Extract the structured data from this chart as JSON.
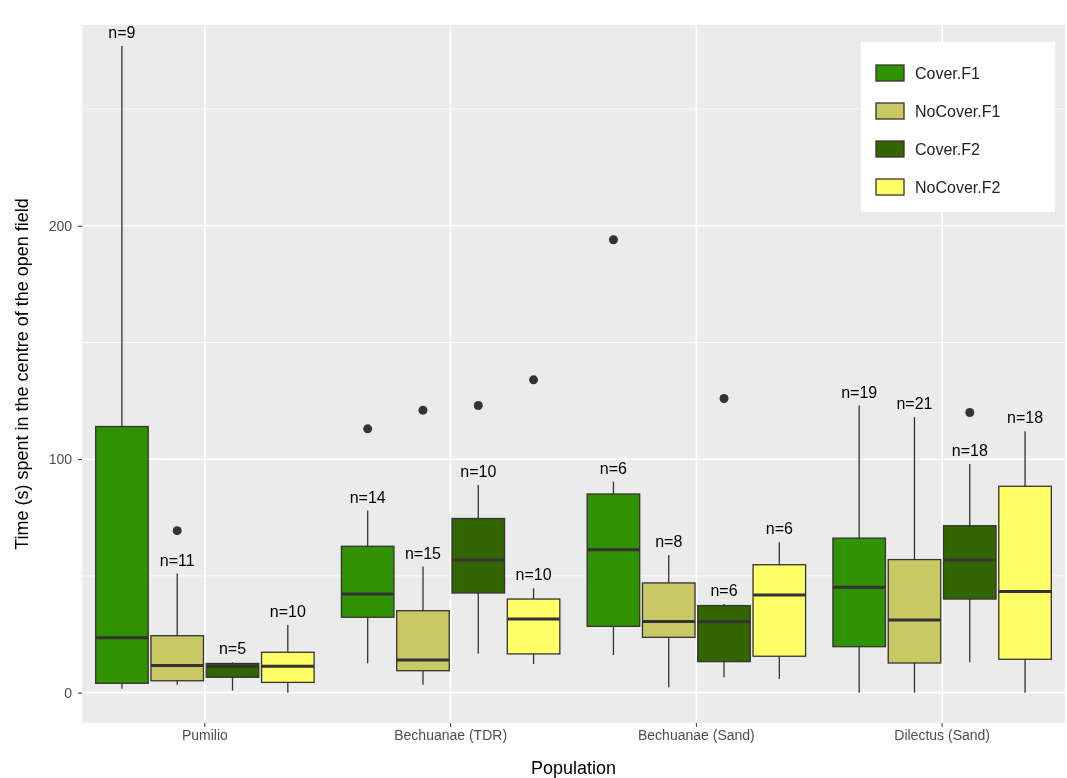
{
  "chart_data": {
    "type": "box",
    "xlabel": "Population",
    "ylabel": "Time (s) spent in the centre of the open field",
    "categories": [
      "Pumilio",
      "Bechuanae (TDR)",
      "Bechuanae (Sand)",
      "Dilectus (Sand)"
    ],
    "ylim": [
      -13,
      286
    ],
    "yticks": [
      {
        "value": 0,
        "label": "0"
      },
      {
        "value": 50,
        "label": null
      },
      {
        "value": 100,
        "label": "100"
      },
      {
        "value": 150,
        "label": null
      },
      {
        "value": 200,
        "label": "200"
      },
      {
        "value": 250,
        "label": null
      }
    ],
    "grid": true,
    "legend": "top right",
    "series": [
      {
        "name": "Cover.F1",
        "color": "#319200",
        "value_labels": [
          "n=9",
          "n=14",
          "n=6",
          "n=19"
        ],
        "boxes": [
          {
            "low": 1.7,
            "q1": 4,
            "median": 23.5,
            "q3": 114,
            "high": 277
          },
          {
            "low": 12.6,
            "q1": 32.3,
            "median": 42.3,
            "q3": 62.7,
            "high": 78,
            "outliers": [
              113
            ]
          },
          {
            "low": 16.1,
            "q1": 28.4,
            "median": 61.2,
            "q3": 85.1,
            "high": 90.4,
            "outliers": [
              194
            ]
          },
          {
            "low": 0,
            "q1": 19.7,
            "median": 45.1,
            "q3": 66.2,
            "high": 123
          }
        ]
      },
      {
        "name": "NoCover.F1",
        "color": "#c8c864",
        "value_labels": [
          "n=11",
          "n=15",
          "n=8",
          "n=21"
        ],
        "boxes": [
          {
            "low": 3.4,
            "q1": 5.1,
            "median": 11.6,
            "q3": 24.4,
            "high": 51,
            "outliers": [
              69.4
            ]
          },
          {
            "low": 3.4,
            "q1": 9.4,
            "median": 14,
            "q3": 35.1,
            "high": 54,
            "outliers": [
              121
            ]
          },
          {
            "low": 2.3,
            "q1": 23.7,
            "median": 30.5,
            "q3": 47,
            "high": 59
          },
          {
            "low": 0,
            "q1": 12.7,
            "median": 31.1,
            "q3": 57,
            "high": 118
          }
        ]
      },
      {
        "name": "Cover.F2",
        "color": "#336600",
        "value_labels": [
          "n=5",
          "n=10",
          "n=6",
          "n=18"
        ],
        "boxes": [
          {
            "low": 0.9,
            "q1": 6.6,
            "median": 11.3,
            "q3": 12.5,
            "high": 13
          },
          {
            "low": 16.8,
            "q1": 42.7,
            "median": 56.8,
            "q3": 74.6,
            "high": 89,
            "outliers": [
              123
            ]
          },
          {
            "low": 6.6,
            "q1": 13.3,
            "median": 30.4,
            "q3": 37.3,
            "high": 38,
            "outliers": [
              126
            ]
          },
          {
            "low": 13,
            "q1": 40.1,
            "median": 56.8,
            "q3": 71.5,
            "high": 98,
            "outliers": [
              120
            ]
          }
        ]
      },
      {
        "name": "NoCover.F2",
        "color": "#ffff66",
        "value_labels": [
          "n=10",
          "n=10",
          "n=6",
          "n=18"
        ],
        "boxes": [
          {
            "low": 0,
            "q1": 4.4,
            "median": 11.3,
            "q3": 17.3,
            "high": 29
          },
          {
            "low": 12.3,
            "q1": 16.6,
            "median": 31.6,
            "q3": 40.1,
            "high": 44.7,
            "outliers": [
              134
            ]
          },
          {
            "low": 5.9,
            "q1": 15.6,
            "median": 41.8,
            "q3": 54.8,
            "high": 64.4
          },
          {
            "low": 0,
            "q1": 14.3,
            "median": 43.3,
            "q3": 88.4,
            "high": 112
          }
        ]
      }
    ]
  }
}
